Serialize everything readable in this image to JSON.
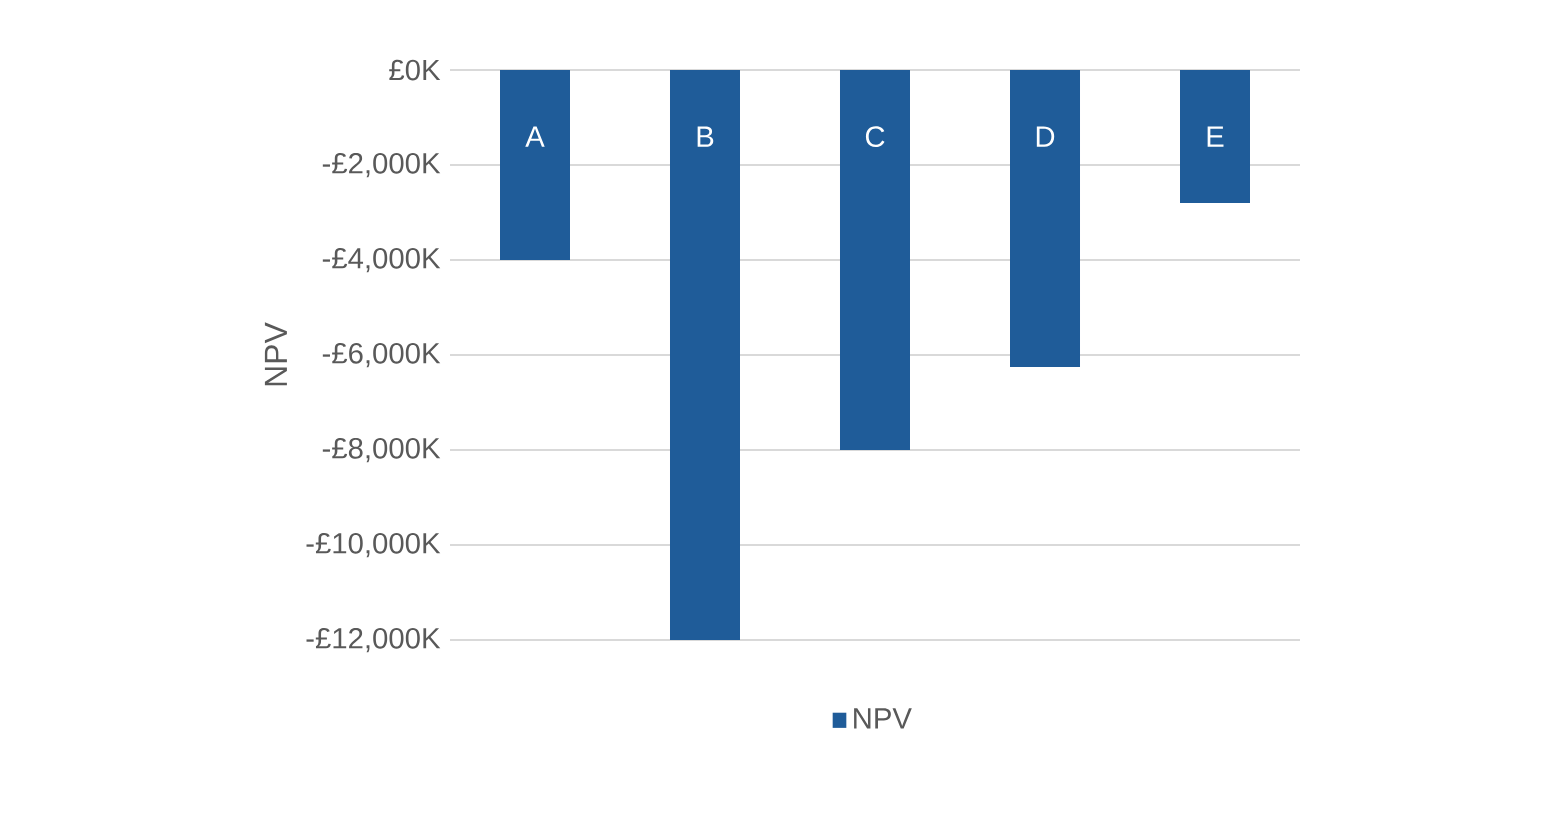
{
  "chart_data": {
    "type": "bar",
    "ylabel": "NPV",
    "categories": [
      "A",
      "B",
      "C",
      "D",
      "E"
    ],
    "series": [
      {
        "name": "NPV",
        "color": "#1f5c99",
        "values": [
          -4000,
          -12000,
          -8000,
          -6250,
          -2800
        ]
      }
    ],
    "ylim": [
      -12000,
      0
    ],
    "yticks": [
      {
        "value": 0,
        "label": "£0K"
      },
      {
        "value": -2000,
        "label": "-£2,000K"
      },
      {
        "value": -4000,
        "label": "-£4,000K"
      },
      {
        "value": -6000,
        "label": "-£6,000K"
      },
      {
        "value": -8000,
        "label": "-£8,000K"
      },
      {
        "value": -10000,
        "label": "-£10,000K"
      },
      {
        "value": -12000,
        "label": "-£12,000K"
      }
    ],
    "grid": "y",
    "legend": "bottom"
  }
}
